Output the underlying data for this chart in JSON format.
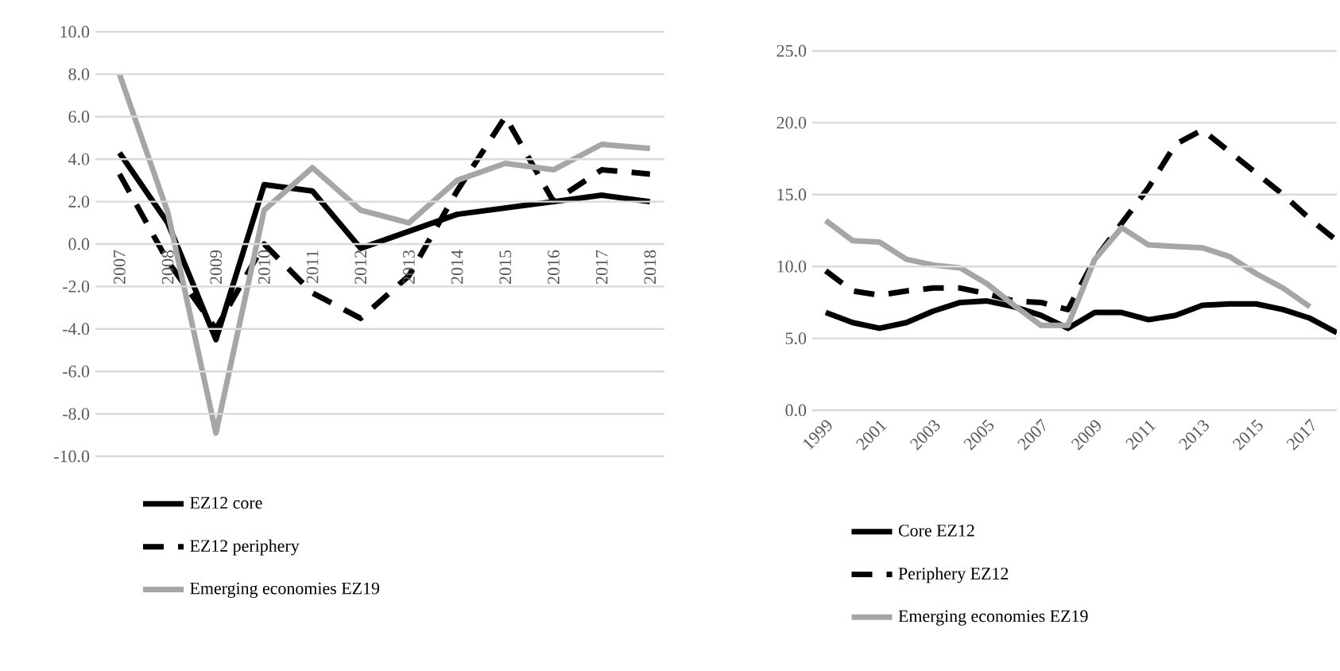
{
  "chart_data": [
    {
      "type": "line",
      "categories": [
        "2007",
        "2008",
        "2009",
        "2010",
        "2011",
        "2012",
        "2013",
        "2014",
        "2015",
        "2016",
        "2017",
        "2018"
      ],
      "series": [
        {
          "name": "EZ12 core",
          "color": "#000000",
          "line_style": "solid",
          "values": [
            4.3,
            1.0,
            -4.5,
            2.8,
            2.5,
            -0.2,
            0.6,
            1.4,
            1.7,
            2.0,
            2.3,
            2.0
          ]
        },
        {
          "name": "EZ12 periphery",
          "color": "#000000",
          "line_style": "dashed",
          "values": [
            3.3,
            -0.8,
            -4.0,
            0.0,
            -2.3,
            -3.5,
            -1.5,
            2.5,
            6.0,
            2.0,
            3.5,
            3.3
          ]
        },
        {
          "name": "Emerging economies EZ19",
          "color": "#a6a6a6",
          "line_style": "solid",
          "values": [
            8.0,
            1.5,
            -8.9,
            1.6,
            3.6,
            1.6,
            1.0,
            3.0,
            3.8,
            3.5,
            4.7,
            4.5
          ]
        }
      ],
      "ylim": [
        -10,
        10
      ],
      "yticks": [
        {
          "value": -10,
          "label": "-10.0"
        },
        {
          "value": -8,
          "label": "-8.0"
        },
        {
          "value": -6,
          "label": "-6.0"
        },
        {
          "value": -4,
          "label": "-4.0"
        },
        {
          "value": -2,
          "label": "-2.0"
        },
        {
          "value": 0,
          "label": "0.0"
        },
        {
          "value": 2,
          "label": "2.0"
        },
        {
          "value": 4,
          "label": "4.0"
        },
        {
          "value": 6,
          "label": "6.0"
        },
        {
          "value": 8,
          "label": "8.0"
        },
        {
          "value": 10,
          "label": "10.0"
        }
      ],
      "grid": "y",
      "legend": "bottom"
    },
    {
      "type": "line",
      "categories": [
        "1999",
        null,
        "2001",
        null,
        "2003",
        null,
        "2005",
        null,
        "2007",
        null,
        "2009",
        null,
        "2011",
        null,
        "2013",
        null,
        "2015",
        null,
        "2017",
        null
      ],
      "series": [
        {
          "name": "Core EZ12",
          "color": "#000000",
          "line_style": "solid",
          "values": [
            6.8,
            6.1,
            5.7,
            6.1,
            6.9,
            7.5,
            7.6,
            7.2,
            6.6,
            5.7,
            6.8,
            6.8,
            6.3,
            6.6,
            7.3,
            7.4,
            7.4,
            7.0,
            6.4,
            5.4
          ]
        },
        {
          "name": "Periphery EZ12",
          "color": "#000000",
          "line_style": "dashed",
          "values": [
            9.7,
            8.3,
            8.0,
            8.3,
            8.5,
            8.5,
            8.1,
            7.6,
            7.5,
            7.0,
            10.5,
            13.0,
            15.5,
            18.5,
            19.5,
            18.0,
            16.5,
            15.0,
            13.3,
            11.8
          ]
        },
        {
          "name": "Emerging economies EZ19",
          "color": "#a6a6a6",
          "line_style": "solid",
          "values": [
            13.2,
            11.8,
            11.7,
            10.5,
            10.1,
            9.9,
            8.8,
            7.3,
            5.9,
            5.9,
            10.5,
            12.7,
            11.5,
            11.4,
            11.3,
            10.7,
            9.5,
            8.5,
            7.2,
            null
          ]
        }
      ],
      "ylim": [
        0,
        25
      ],
      "yticks": [
        {
          "value": 0,
          "label": "0.0"
        },
        {
          "value": 5,
          "label": "5.0"
        },
        {
          "value": 10,
          "label": "10.0"
        },
        {
          "value": 15,
          "label": "15.0"
        },
        {
          "value": 20,
          "label": "20.0"
        },
        {
          "value": 25,
          "label": "25.0"
        }
      ],
      "grid": "y",
      "legend": "bottom"
    }
  ]
}
